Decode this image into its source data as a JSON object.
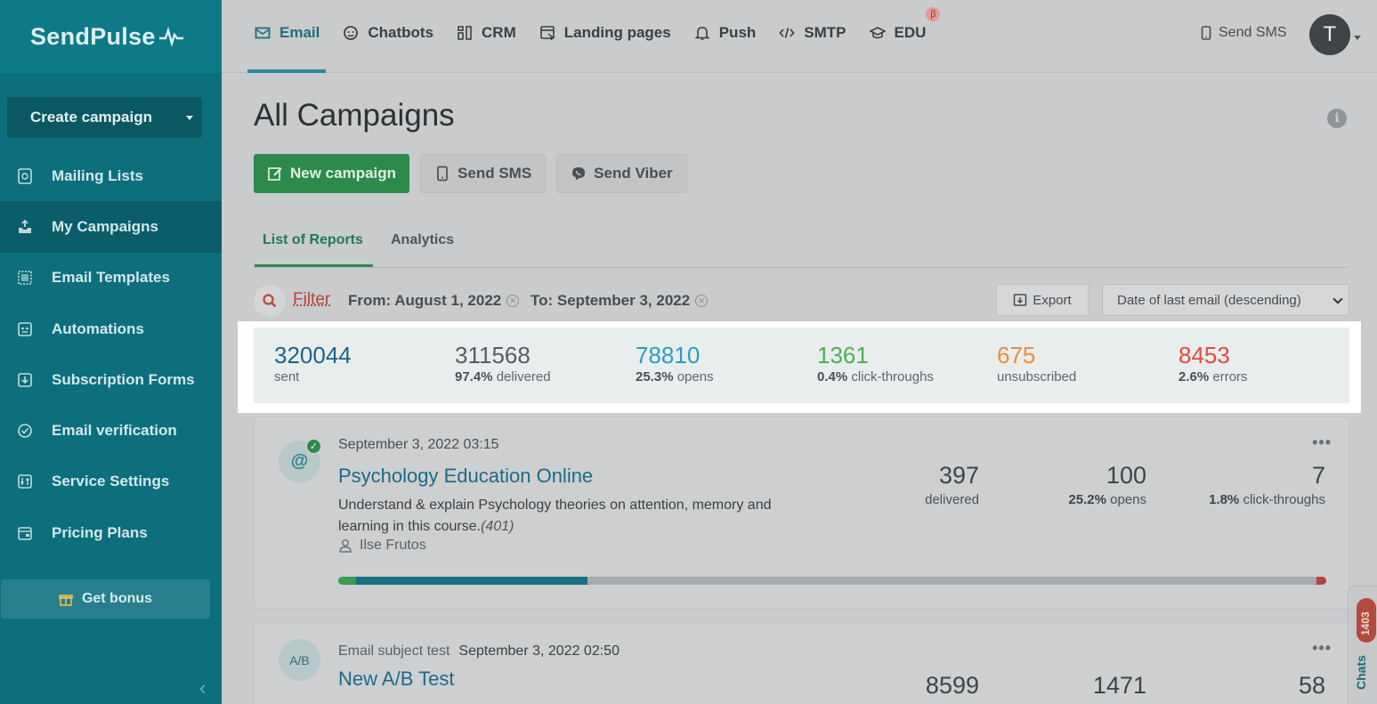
{
  "brand": {
    "name": "SendPulse"
  },
  "sidebar": {
    "create_label": "Create campaign",
    "items": [
      {
        "label": "Mailing Lists",
        "icon": "mailing-list-icon"
      },
      {
        "label": "My Campaigns",
        "icon": "campaigns-icon",
        "active": true
      },
      {
        "label": "Email Templates",
        "icon": "templates-icon"
      },
      {
        "label": "Automations",
        "icon": "automations-icon"
      },
      {
        "label": "Subscription Forms",
        "icon": "forms-icon"
      },
      {
        "label": "Email verification",
        "icon": "verification-icon"
      },
      {
        "label": "Service Settings",
        "icon": "settings-icon"
      },
      {
        "label": "Pricing Plans",
        "icon": "pricing-icon"
      }
    ],
    "bonus_label": "Get bonus"
  },
  "topnav": {
    "items": [
      {
        "label": "Email",
        "icon": "email-icon",
        "active": true
      },
      {
        "label": "Chatbots",
        "icon": "chatbot-icon"
      },
      {
        "label": "CRM",
        "icon": "crm-icon"
      },
      {
        "label": "Landing pages",
        "icon": "landing-icon"
      },
      {
        "label": "Push",
        "icon": "bell-icon"
      },
      {
        "label": "SMTP",
        "icon": "code-icon"
      },
      {
        "label": "EDU",
        "icon": "graduation-cap-icon",
        "badge": "β"
      }
    ],
    "send_sms": "Send SMS",
    "avatar_initial": "T"
  },
  "page": {
    "title": "All Campaigns",
    "actions": {
      "new_campaign": "New campaign",
      "send_sms": "Send SMS",
      "send_viber": "Send Viber"
    },
    "tabs": [
      {
        "label": "List of Reports",
        "active": true
      },
      {
        "label": "Analytics"
      }
    ],
    "filter": {
      "label": "Filter",
      "from": "From: August 1, 2022",
      "to": "To: September 3, 2022",
      "export": "Export",
      "sort": "Date of last email (descending)"
    }
  },
  "stats": [
    {
      "value": "320044",
      "pct": "",
      "label": "sent",
      "color": "#1c6388"
    },
    {
      "value": "311568",
      "pct": "97.4%",
      "label": "delivered",
      "color": "#575c60"
    },
    {
      "value": "78810",
      "pct": "25.3%",
      "label": "opens",
      "color": "#2a9fbf"
    },
    {
      "value": "1361",
      "pct": "0.4%",
      "label": "click-throughs",
      "color": "#4fae52"
    },
    {
      "value": "675",
      "pct": "",
      "label": "unsubscribed",
      "color": "#ef8a3b"
    },
    {
      "value": "8453",
      "pct": "2.6%",
      "label": "errors",
      "color": "#e6493b"
    }
  ],
  "campaigns": [
    {
      "date": "September 3, 2022 03:15",
      "title": "Psychology Education Online",
      "description": "Understand & explain Psychology theories on attention, memory and learning in this course.",
      "count": "(401)",
      "author": "Ilse Frutos",
      "metrics": [
        {
          "value": "397",
          "pct": "",
          "label": "delivered"
        },
        {
          "value": "100",
          "pct": "25.2%",
          "label": "opens"
        },
        {
          "value": "7",
          "pct": "1.8%",
          "label": "click-throughs"
        }
      ],
      "progress": {
        "green": 0.018,
        "teal": 0.234,
        "red": 0.01
      }
    },
    {
      "subject_label": "Email subject test",
      "date": "September 3, 2022 02:50",
      "avatar": "A/B",
      "title": "New A/B Test",
      "metrics": [
        {
          "value": "8599"
        },
        {
          "value": "1471"
        },
        {
          "value": "58"
        }
      ]
    }
  ],
  "chats": {
    "label": "Chats",
    "count": "1403"
  }
}
